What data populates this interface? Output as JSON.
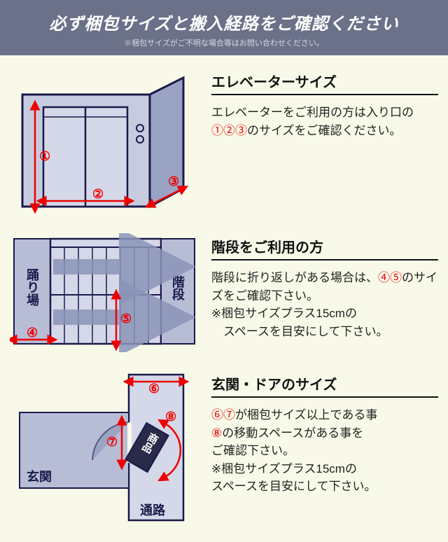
{
  "header": {
    "title": "必ず梱包サイズと搬入経路をご確認ください",
    "subtitle": "※梱包サイズがご不明な場合等はお問い合わせください。"
  },
  "sections": {
    "elevator": {
      "heading": "エレベーターサイズ",
      "body": "エレベーターをご利用の方は入り口の①②③のサイズをご確認ください。",
      "marks": {
        "m1": "①",
        "m2": "②",
        "m3": "③"
      },
      "labels": {}
    },
    "stairs": {
      "heading": "階段をご利用の方",
      "body": "階段に折り返しがある場合は、④⑤のサイズをご確認下さい。\n※梱包サイズプラス15cmの\n　スペースを目安にして下さい。",
      "marks": {
        "m4": "④",
        "m5": "⑤"
      },
      "labels": {
        "landing": "踊り場",
        "stairs": "階段"
      }
    },
    "door": {
      "heading": "玄関・ドアのサイズ",
      "body": "⑥⑦が梱包サイズ以上である事\n⑧の移動スペースがある事を\nご確認下さい。\n※梱包サイズプラス15cmの\nスペースを目安にして下さい。",
      "marks": {
        "m6": "⑥",
        "m7": "⑦",
        "m8": "⑧"
      },
      "labels": {
        "entrance": "玄関",
        "product": "商品",
        "corridor": "通路"
      }
    }
  },
  "colors": {
    "header_bg": "#6b7189",
    "page_bg": "#f8f9e8",
    "shape_fill": "#b8bdd6",
    "shape_stroke": "#1a1a4a",
    "accent": "#e00000",
    "big_arrow": "#8b94b8"
  }
}
